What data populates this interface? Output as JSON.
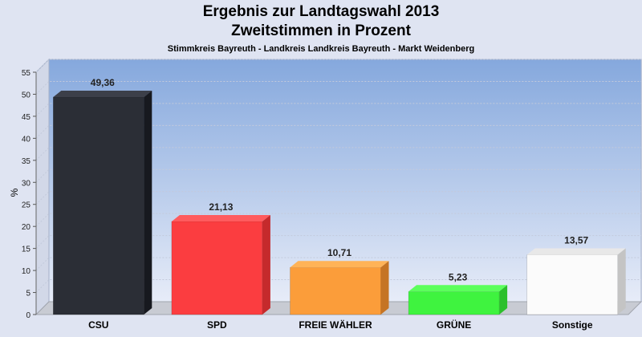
{
  "chart_data": {
    "type": "bar",
    "title": "Ergebnis zur Landtagswahl 2013",
    "subtitle_line": "Zweitstimmen in Prozent",
    "caption": "Stimmkreis Bayreuth - Landkreis Landkreis Bayreuth - Markt Weidenberg",
    "ylabel": "%",
    "xlabel": "",
    "ylim": [
      0,
      55
    ],
    "yticks": [
      0,
      5,
      10,
      15,
      20,
      25,
      30,
      35,
      40,
      45,
      50,
      55
    ],
    "grid": true,
    "categories": [
      "CSU",
      "SPD",
      "FREIE WÄHLER",
      "GRÜNE",
      "Sonstige"
    ],
    "values": [
      49.36,
      21.13,
      10.71,
      5.23,
      13.57
    ],
    "value_labels": [
      "49,36",
      "21,13",
      "10,71",
      "5,23",
      "13,57"
    ],
    "colors": [
      "#2b2e36",
      "#fb3d40",
      "#fb9d3a",
      "#3ff33f",
      "#fbfbfb"
    ],
    "side_colors": [
      "#17191f",
      "#c52a2c",
      "#c57424",
      "#2cc02c",
      "#c4c4c4"
    ],
    "top_colors": [
      "#3c3f49",
      "#ff5b5e",
      "#ffb357",
      "#5cff5c",
      "#e8e8e8"
    ],
    "plot_bg_top": "#85a8dd",
    "plot_bg_bottom": "#e7ecf8"
  }
}
